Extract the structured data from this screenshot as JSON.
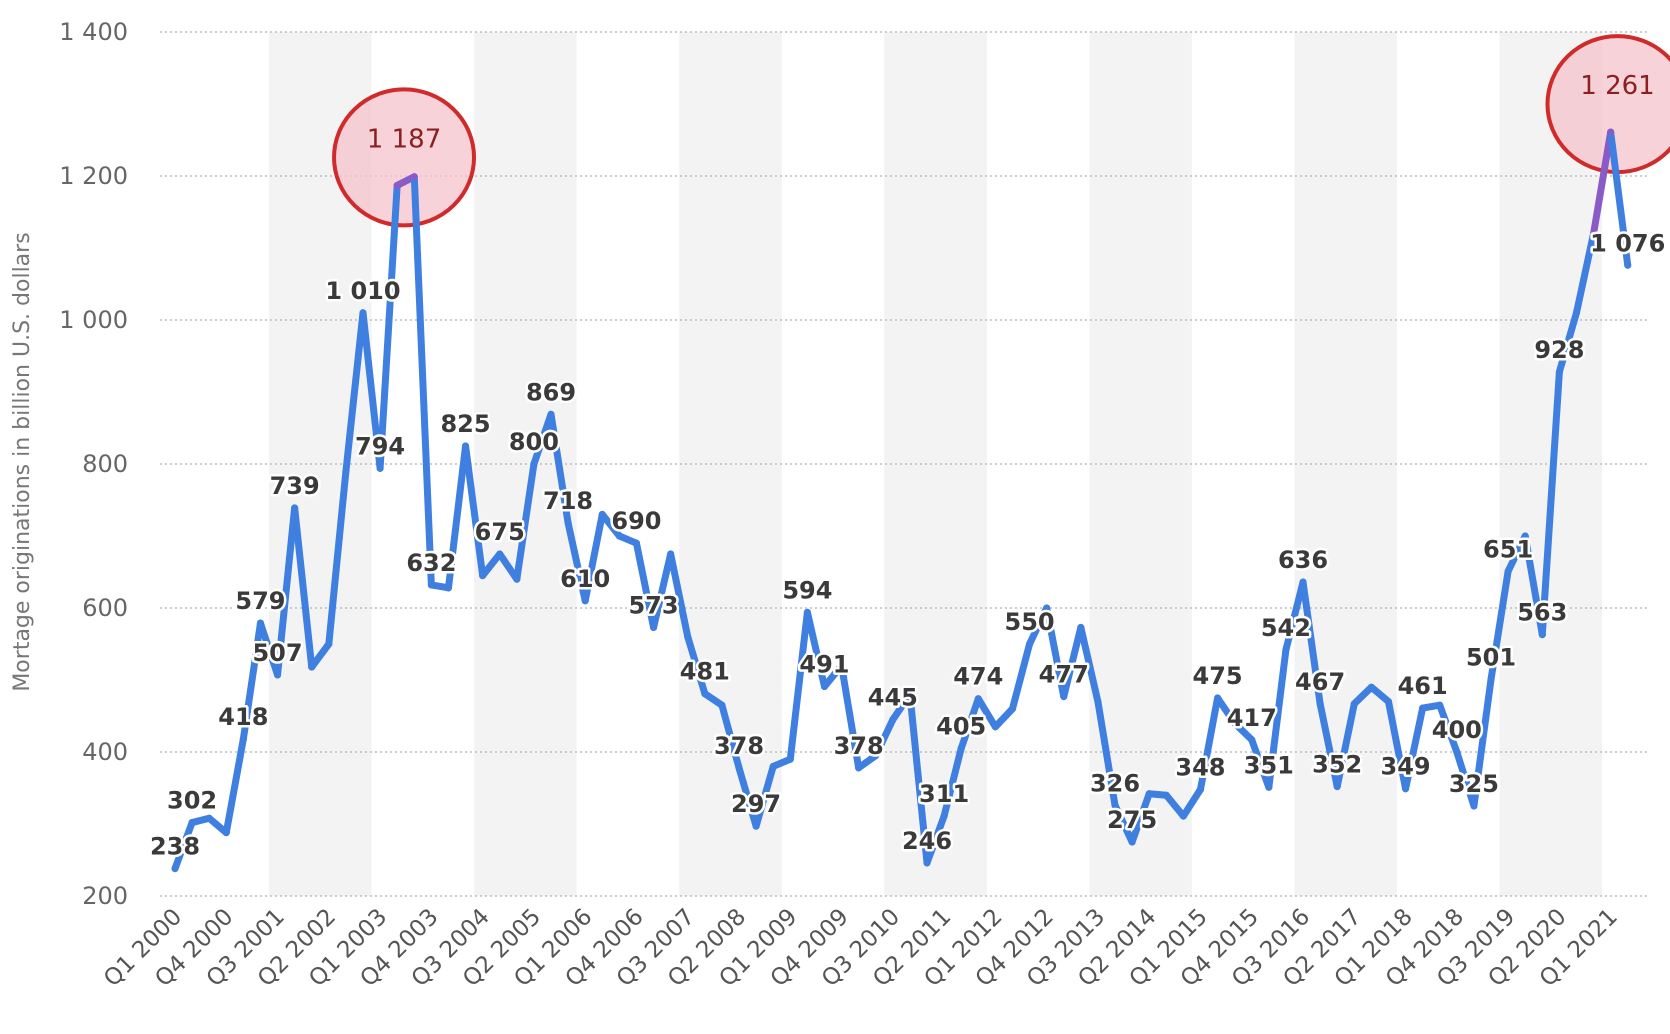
{
  "chart_data": {
    "type": "line",
    "ylabel": "Mortage originations in billion U.S. dollars",
    "xlabel": "",
    "ylim": [
      200,
      1400
    ],
    "yticks": [
      200,
      400,
      600,
      800,
      1000,
      1200,
      1400
    ],
    "ytick_labels": [
      "200",
      "400",
      "600",
      "800",
      "1 000",
      "1 200",
      "1 400"
    ],
    "grid": true,
    "series_color": "#3f7fe0",
    "highlight_color": "#8a5bc6",
    "circle_stroke": "#d02a2a",
    "circle_fill": "#f4c4cc",
    "x_tick_labels": [
      "Q1 2000",
      "Q4 2000",
      "Q3 2001",
      "Q2 2002",
      "Q1 2003",
      "Q4 2003",
      "Q3 2004",
      "Q2 2005",
      "Q1 2006",
      "Q4 2006",
      "Q3 2007",
      "Q2 2008",
      "Q1 2009",
      "Q4 2009",
      "Q3 2010",
      "Q2 2011",
      "Q1 2012",
      "Q4 2012",
      "Q3 2013",
      "Q2 2014",
      "Q1 2015",
      "Q4 2015",
      "Q3 2016",
      "Q2 2017",
      "Q1 2018",
      "Q4 2018",
      "Q3 2019",
      "Q2 2020",
      "Q1 2021"
    ],
    "categories": [
      "Q1 2000",
      "Q2 2000",
      "Q3 2000",
      "Q4 2000",
      "Q1 2001",
      "Q2 2001",
      "Q3 2001",
      "Q4 2001",
      "Q1 2002",
      "Q2 2002",
      "Q3 2002",
      "Q4 2002",
      "Q1 2003",
      "Q2 2003",
      "Q3 2003",
      "Q4 2003",
      "Q1 2004",
      "Q2 2004",
      "Q3 2004",
      "Q4 2004",
      "Q1 2005",
      "Q2 2005",
      "Q3 2005",
      "Q4 2005",
      "Q1 2006",
      "Q2 2006",
      "Q3 2006",
      "Q4 2006",
      "Q1 2007",
      "Q2 2007",
      "Q3 2007",
      "Q4 2007",
      "Q1 2008",
      "Q2 2008",
      "Q3 2008",
      "Q4 2008",
      "Q1 2009",
      "Q2 2009",
      "Q3 2009",
      "Q4 2009",
      "Q1 2010",
      "Q2 2010",
      "Q3 2010",
      "Q4 2010",
      "Q1 2011",
      "Q2 2011",
      "Q3 2011",
      "Q4 2011",
      "Q1 2012",
      "Q2 2012",
      "Q3 2012",
      "Q4 2012",
      "Q1 2013",
      "Q2 2013",
      "Q3 2013",
      "Q4 2013",
      "Q1 2014",
      "Q2 2014",
      "Q3 2014",
      "Q4 2014",
      "Q1 2015",
      "Q2 2015",
      "Q3 2015",
      "Q4 2015",
      "Q1 2016",
      "Q2 2016",
      "Q3 2016",
      "Q4 2016",
      "Q1 2017",
      "Q2 2017",
      "Q3 2017",
      "Q4 2017",
      "Q1 2018",
      "Q2 2018",
      "Q3 2018",
      "Q4 2018",
      "Q1 2019",
      "Q2 2019",
      "Q3 2019",
      "Q4 2019",
      "Q1 2020",
      "Q2 2020",
      "Q3 2020",
      "Q4 2020",
      "Q1 2021",
      "Q2 2021"
    ],
    "values": [
      238,
      302,
      308,
      288,
      418,
      579,
      507,
      739,
      518,
      550,
      790,
      1010,
      794,
      1187,
      1199,
      632,
      628,
      825,
      645,
      675,
      640,
      800,
      869,
      718,
      610,
      730,
      700,
      690,
      573,
      675,
      560,
      481,
      465,
      378,
      297,
      380,
      390,
      594,
      491,
      520,
      378,
      395,
      445,
      480,
      246,
      311,
      405,
      474,
      435,
      460,
      550,
      600,
      477,
      573,
      470,
      326,
      275,
      342,
      340,
      311,
      348,
      475,
      440,
      417,
      351,
      542,
      636,
      467,
      352,
      467,
      490,
      470,
      349,
      461,
      465,
      400,
      325,
      501,
      651,
      700,
      563,
      928,
      1010,
      1120,
      1261,
      1076
    ],
    "data_labels": [
      {
        "i": 0,
        "text": "238"
      },
      {
        "i": 1,
        "text": "302"
      },
      {
        "i": 4,
        "text": "418"
      },
      {
        "i": 5,
        "text": "579"
      },
      {
        "i": 6,
        "text": "507"
      },
      {
        "i": 7,
        "text": "739"
      },
      {
        "i": 11,
        "text": "1 010"
      },
      {
        "i": 12,
        "text": "794"
      },
      {
        "i": 13,
        "text": "1 187"
      },
      {
        "i": 15,
        "text": "632"
      },
      {
        "i": 17,
        "text": "825"
      },
      {
        "i": 19,
        "text": "675"
      },
      {
        "i": 21,
        "text": "800"
      },
      {
        "i": 22,
        "text": "869"
      },
      {
        "i": 23,
        "text": "718"
      },
      {
        "i": 24,
        "text": "610"
      },
      {
        "i": 27,
        "text": "690"
      },
      {
        "i": 28,
        "text": "573"
      },
      {
        "i": 31,
        "text": "481"
      },
      {
        "i": 33,
        "text": "378"
      },
      {
        "i": 34,
        "text": "297"
      },
      {
        "i": 37,
        "text": "594"
      },
      {
        "i": 38,
        "text": "491"
      },
      {
        "i": 40,
        "text": "378"
      },
      {
        "i": 42,
        "text": "445"
      },
      {
        "i": 44,
        "text": "246"
      },
      {
        "i": 45,
        "text": "311"
      },
      {
        "i": 46,
        "text": "405"
      },
      {
        "i": 47,
        "text": "474"
      },
      {
        "i": 50,
        "text": "550"
      },
      {
        "i": 52,
        "text": "477"
      },
      {
        "i": 55,
        "text": "326"
      },
      {
        "i": 56,
        "text": "275"
      },
      {
        "i": 60,
        "text": "348"
      },
      {
        "i": 61,
        "text": "475"
      },
      {
        "i": 63,
        "text": "417"
      },
      {
        "i": 64,
        "text": "351"
      },
      {
        "i": 65,
        "text": "542"
      },
      {
        "i": 66,
        "text": "636"
      },
      {
        "i": 67,
        "text": "467"
      },
      {
        "i": 68,
        "text": "352"
      },
      {
        "i": 72,
        "text": "349"
      },
      {
        "i": 73,
        "text": "461"
      },
      {
        "i": 75,
        "text": "400"
      },
      {
        "i": 76,
        "text": "325"
      },
      {
        "i": 77,
        "text": "501"
      },
      {
        "i": 78,
        "text": "651"
      },
      {
        "i": 80,
        "text": "563"
      },
      {
        "i": 81,
        "text": "928"
      },
      {
        "i": 84,
        "text": "1 261"
      },
      {
        "i": 85,
        "text": "1 076"
      }
    ],
    "highlights": [
      {
        "i": 13,
        "text": "1 187"
      },
      {
        "i": 84,
        "text": "1 261"
      }
    ]
  }
}
